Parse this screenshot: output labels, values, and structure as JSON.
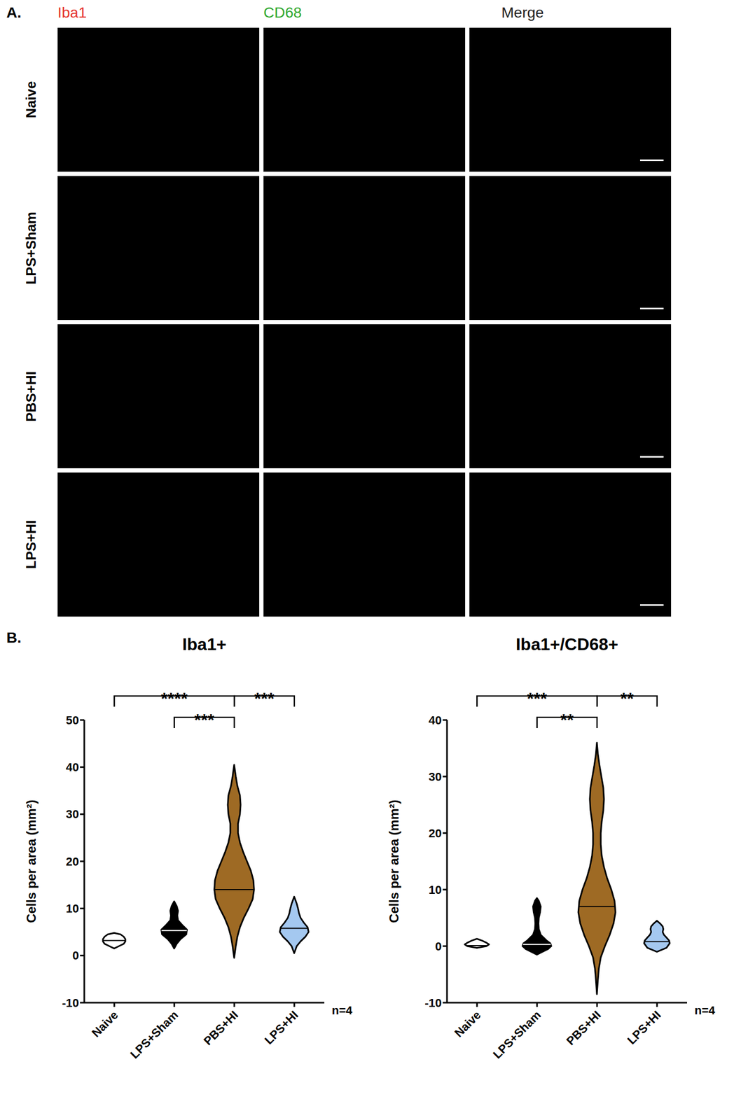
{
  "panel_a": {
    "label": "A.",
    "columns": [
      {
        "text": "Iba1",
        "color": "#e5322b"
      },
      {
        "text": "CD68",
        "color": "#2fa82f"
      },
      {
        "text": "Merge",
        "color": "#222222"
      }
    ],
    "rows": [
      "Naive",
      "LPS+Sham",
      "PBS+HI",
      "LPS+HI"
    ]
  },
  "panel_b_label": "B.",
  "chart_data": [
    {
      "type": "violin",
      "title": "Iba1+",
      "y_label": "Cells per area (mm²)",
      "annotation": "n=4",
      "categories": [
        "Naive",
        "LPS+Sham",
        "PBS+HI",
        "LPS+HI"
      ],
      "ylim": [
        -10,
        50
      ],
      "yticks": [
        -10,
        0,
        10,
        20,
        30,
        40,
        50
      ],
      "violins": [
        {
          "category": "Naive",
          "color": "#ffffff",
          "median": 3.2,
          "profile": {
            "y": [
              1.5,
              2,
              2.5,
              3,
              3.5,
              4,
              4.5,
              4.8
            ],
            "width": [
              0,
              0.15,
              0.3,
              0.35,
              0.35,
              0.3,
              0.2,
              0
            ]
          }
        },
        {
          "category": "LPS+Sham",
          "color": "#000000",
          "median": 5.3,
          "profile": {
            "y": [
              1.5,
              2.5,
              3.5,
              4.5,
              5.5,
              6.5,
              7.5,
              8.5,
              9.5,
              10.5,
              11.5
            ],
            "width": [
              0,
              0.08,
              0.2,
              0.38,
              0.4,
              0.25,
              0.12,
              0.1,
              0.12,
              0.08,
              0
            ]
          }
        },
        {
          "category": "PBS+HI",
          "color": "#9e6a24",
          "median": 14,
          "profile": {
            "y": [
              -0.5,
              2,
              4,
              6,
              8,
              10,
              12,
              14,
              16,
              18,
              20,
              22,
              24,
              26,
              28,
              30,
              32,
              34,
              36,
              38,
              40.5
            ],
            "width": [
              0,
              0.05,
              0.1,
              0.18,
              0.3,
              0.45,
              0.58,
              0.62,
              0.6,
              0.52,
              0.4,
              0.28,
              0.18,
              0.12,
              0.12,
              0.18,
              0.2,
              0.18,
              0.1,
              0.05,
              0
            ]
          }
        },
        {
          "category": "LPS+HI",
          "color": "#a4c8f0",
          "median": 5.8,
          "profile": {
            "y": [
              0.5,
              2,
              3,
              4,
              5,
              6,
              7,
              8,
              9,
              10,
              11,
              12.5
            ],
            "width": [
              0,
              0.08,
              0.2,
              0.35,
              0.45,
              0.42,
              0.3,
              0.2,
              0.15,
              0.12,
              0.08,
              0
            ]
          }
        }
      ],
      "comparisons": [
        {
          "from": "Naive",
          "to": "PBS+HI",
          "label": "****"
        },
        {
          "from": "LPS+Sham",
          "to": "PBS+HI",
          "label": "***"
        },
        {
          "from": "PBS+HI",
          "to": "LPS+HI",
          "label": "***"
        }
      ]
    },
    {
      "type": "violin",
      "title": "Iba1+/CD68+",
      "y_label": "Cells per area (mm²)",
      "annotation": "n=4",
      "categories": [
        "Naive",
        "LPS+Sham",
        "PBS+HI",
        "LPS+HI"
      ],
      "ylim": [
        -10,
        40
      ],
      "yticks": [
        -10,
        0,
        10,
        20,
        30,
        40
      ],
      "violins": [
        {
          "category": "Naive",
          "color": "#ffffff",
          "median": 0.1,
          "profile": {
            "y": [
              -0.3,
              0,
              0.3,
              0.6,
              1,
              1.3
            ],
            "width": [
              0,
              0.3,
              0.38,
              0.3,
              0.15,
              0
            ]
          }
        },
        {
          "category": "LPS+Sham",
          "color": "#000000",
          "median": 0.3,
          "profile": {
            "y": [
              -1.5,
              -0.5,
              0,
              0.5,
              1,
              2,
              3,
              4,
              5,
              6,
              7,
              8,
              8.5
            ],
            "width": [
              0,
              0.35,
              0.45,
              0.42,
              0.3,
              0.12,
              0.06,
              0.05,
              0.06,
              0.1,
              0.12,
              0.06,
              0
            ]
          }
        },
        {
          "category": "PBS+HI",
          "color": "#9e6a24",
          "median": 7,
          "profile": {
            "y": [
              -8.5,
              -6,
              -4,
              -2,
              0,
              2,
              4,
              6,
              8,
              10,
              12,
              14,
              16,
              18,
              20,
              22,
              24,
              26,
              28,
              30,
              32,
              34,
              36
            ],
            "width": [
              0,
              0.03,
              0.06,
              0.12,
              0.25,
              0.4,
              0.52,
              0.58,
              0.55,
              0.45,
              0.32,
              0.22,
              0.15,
              0.12,
              0.12,
              0.15,
              0.2,
              0.22,
              0.2,
              0.14,
              0.08,
              0.03,
              0
            ]
          }
        },
        {
          "category": "LPS+HI",
          "color": "#a4c8f0",
          "median": 0.8,
          "profile": {
            "y": [
              -1,
              -0.3,
              0.5,
              1,
              1.5,
              2,
              2.5,
              3,
              3.5,
              4,
              4.5
            ],
            "width": [
              0,
              0.3,
              0.4,
              0.38,
              0.3,
              0.22,
              0.18,
              0.2,
              0.18,
              0.1,
              0
            ]
          }
        }
      ],
      "comparisons": [
        {
          "from": "Naive",
          "to": "PBS+HI",
          "label": "***"
        },
        {
          "from": "LPS+Sham",
          "to": "PBS+HI",
          "label": "**"
        },
        {
          "from": "PBS+HI",
          "to": "LPS+HI",
          "label": "**"
        }
      ]
    }
  ]
}
